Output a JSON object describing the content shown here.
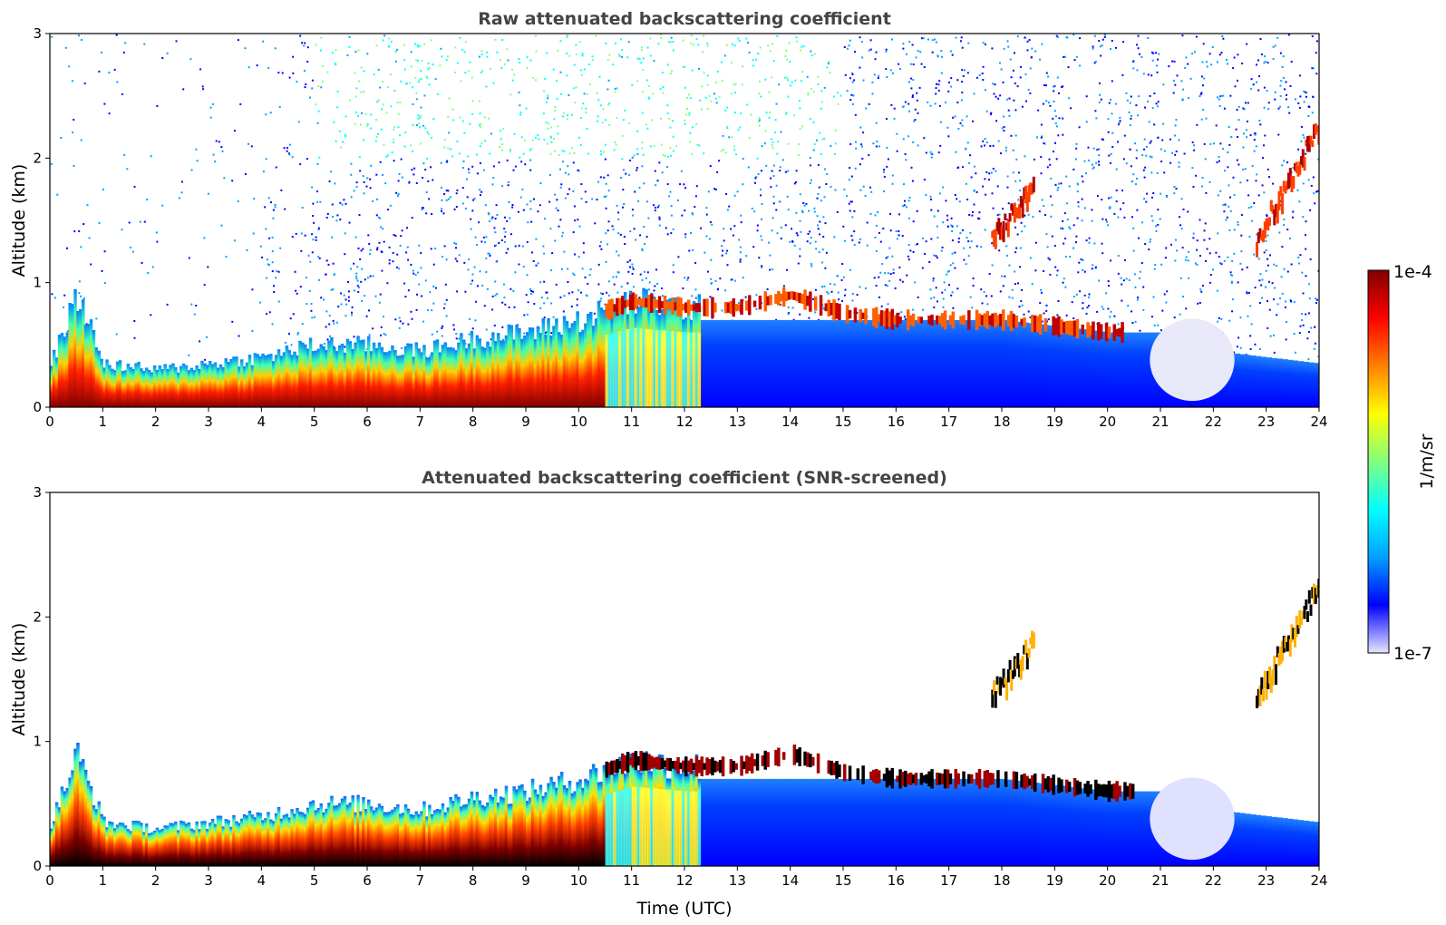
{
  "figure": {
    "colorbar": {
      "label": "1/m/sr",
      "tick_labels": [
        "1e-4",
        "1e-7"
      ],
      "scale": "log",
      "range": [
        1e-07,
        0.0001
      ],
      "colormap": "jet",
      "stops": [
        "#e6e6ff",
        "#0000ff",
        "#00a0ff",
        "#00ffff",
        "#80ff80",
        "#ffff00",
        "#ff8000",
        "#ff0000",
        "#800000"
      ]
    },
    "x_ticks": [
      "0",
      "1",
      "2",
      "3",
      "4",
      "5",
      "6",
      "7",
      "8",
      "9",
      "10",
      "11",
      "12",
      "13",
      "14",
      "15",
      "16",
      "17",
      "18",
      "19",
      "20",
      "21",
      "22",
      "23",
      "24"
    ],
    "y_ticks": [
      "0",
      "1",
      "2",
      "3"
    ]
  },
  "chart_data": [
    {
      "type": "heatmap",
      "title": "Raw attenuated backscattering coefficient",
      "xlabel": "",
      "ylabel": "Altitude (km)",
      "xlim": [
        0,
        24
      ],
      "ylim": [
        0,
        3
      ],
      "zscale": "log",
      "zlim": [
        1e-07,
        0.0001
      ],
      "note_regions": {
        "boundary_layer_top_km": [
          {
            "t": 0,
            "h": 0.35
          },
          {
            "t": 0.5,
            "h": 0.9
          },
          {
            "t": 1,
            "h": 0.35
          },
          {
            "t": 2,
            "h": 0.3
          },
          {
            "t": 3,
            "h": 0.35
          },
          {
            "t": 4,
            "h": 0.4
          },
          {
            "t": 5,
            "h": 0.5
          },
          {
            "t": 6,
            "h": 0.5
          },
          {
            "t": 7,
            "h": 0.45
          },
          {
            "t": 8,
            "h": 0.55
          },
          {
            "t": 9,
            "h": 0.6
          },
          {
            "t": 10,
            "h": 0.7
          },
          {
            "t": 11,
            "h": 0.85
          },
          {
            "t": 12,
            "h": 0.8
          },
          {
            "t": 13,
            "h": 0.8
          },
          {
            "t": 14,
            "h": 0.9
          },
          {
            "t": 15,
            "h": 0.75
          },
          {
            "t": 16,
            "h": 0.7
          },
          {
            "t": 17,
            "h": 0.7
          },
          {
            "t": 18,
            "h": 0.7
          },
          {
            "t": 19,
            "h": 0.65
          },
          {
            "t": 20,
            "h": 0.6
          },
          {
            "t": 21,
            "h": 0.6
          },
          {
            "t": 22,
            "h": 0.45
          },
          {
            "t": 23,
            "h": 0.4
          },
          {
            "t": 24,
            "h": 0.35
          }
        ],
        "elevated_layers": [
          {
            "t_start": 17.8,
            "t_end": 18.6,
            "h_low": 1.4,
            "h_high": 1.85
          },
          {
            "t_start": 22.8,
            "t_end": 24,
            "h_low": 1.4,
            "h_high": 2.3
          }
        ]
      }
    },
    {
      "type": "heatmap",
      "title": "Attenuated backscattering coefficient (SNR-screened)",
      "xlabel": "Time (UTC)",
      "ylabel": "Altitude (km)",
      "xlim": [
        0,
        24
      ],
      "ylim": [
        0,
        3
      ],
      "zscale": "log",
      "zlim": [
        1e-07,
        0.0001
      ]
    }
  ]
}
